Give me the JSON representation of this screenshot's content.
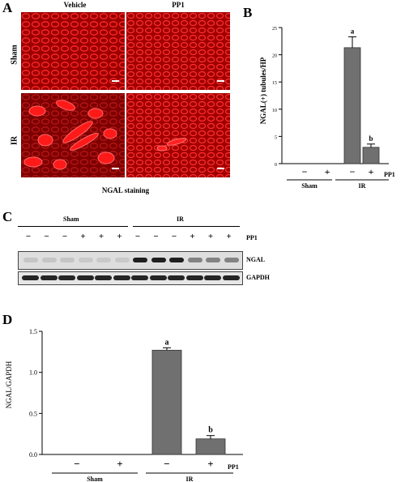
{
  "panel_a": {
    "letter": "A",
    "columns": [
      "Vehicle",
      "PP1"
    ],
    "rows": [
      "Sham",
      "IR"
    ],
    "caption": "NGAL staining"
  },
  "panel_b": {
    "letter": "B",
    "bar_color": "#707070"
  },
  "panel_c": {
    "letter": "C",
    "groups": [
      "Sham",
      "IR"
    ],
    "lane_treatment": [
      "−",
      "−",
      "−",
      "+",
      "+",
      "+",
      "−",
      "−",
      "−",
      "+",
      "+",
      "+"
    ],
    "treatment_label": "PP1",
    "blots": [
      "NGAL",
      "GAPDH"
    ]
  },
  "panel_d": {
    "letter": "D"
  },
  "chart_data": [
    {
      "type": "bar",
      "panel": "B",
      "categories": [
        "Sham −",
        "Sham +",
        "IR −",
        "IR +"
      ],
      "values": [
        0,
        0,
        21.3,
        3.0
      ],
      "errors": [
        0,
        0,
        2.0,
        0.6
      ],
      "ylabel": "NGAL(+) tubules/HP",
      "ylim": [
        0,
        25
      ],
      "yticks": [
        0,
        5,
        10,
        15,
        20,
        25
      ],
      "treatment_signs": [
        "−",
        "+",
        "−",
        "+"
      ],
      "treatment_label": "PP1",
      "groups": [
        "Sham",
        "IR"
      ],
      "significance": [
        "",
        "",
        "a",
        "b"
      ]
    },
    {
      "type": "bar",
      "panel": "D",
      "categories": [
        "Sham −",
        "Sham +",
        "IR −",
        "IR +"
      ],
      "values": [
        0,
        0,
        1.27,
        0.19
      ],
      "errors": [
        0,
        0,
        0.03,
        0.04
      ],
      "ylabel": "NGAL/GAPDH",
      "ylim": [
        0,
        1.5
      ],
      "yticks": [
        "0.0",
        "0.5",
        "1.0",
        "1.5"
      ],
      "treatment_signs": [
        "−",
        "+",
        "−",
        "+"
      ],
      "treatment_label": "PP1",
      "groups": [
        "Sham",
        "IR"
      ],
      "significance": [
        "",
        "",
        "a",
        "b"
      ]
    }
  ]
}
